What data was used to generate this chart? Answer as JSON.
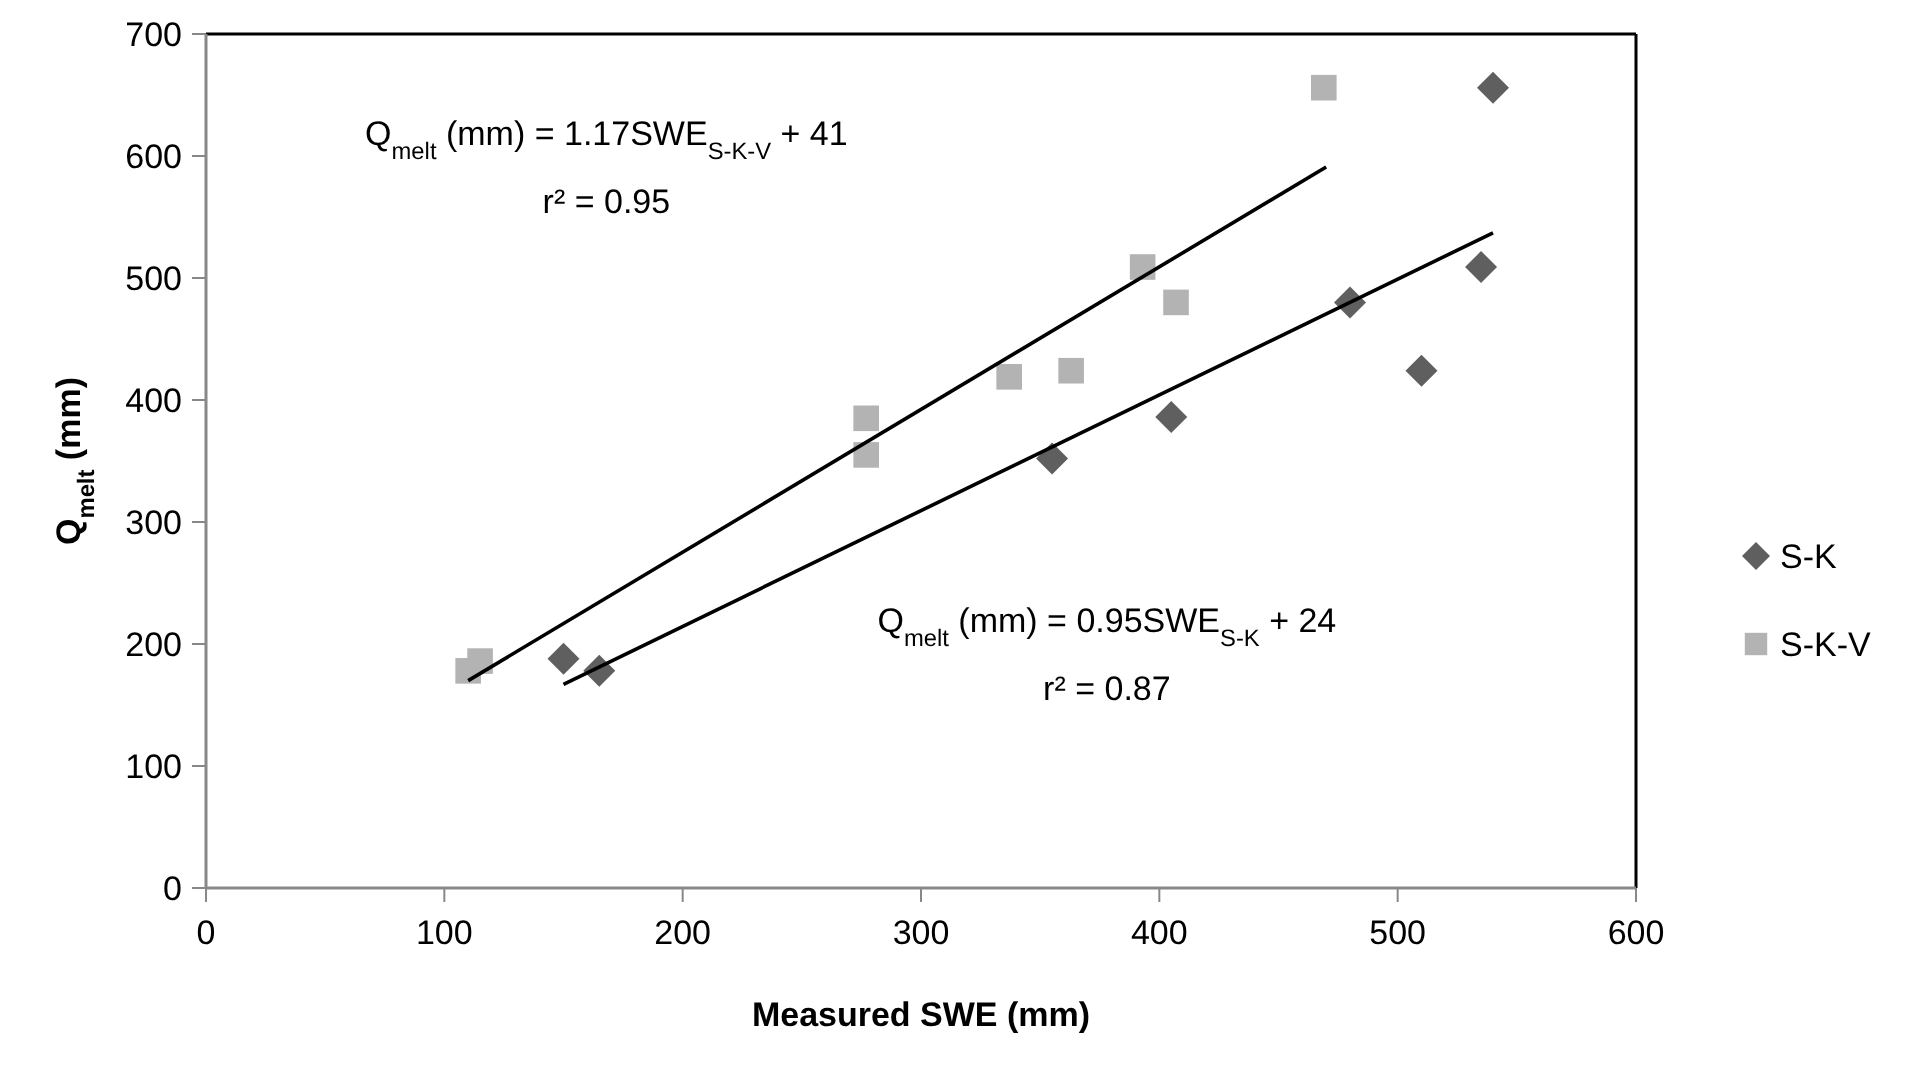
{
  "chart_data": {
    "type": "scatter",
    "xlabel": "Measured SWE (mm)",
    "ylabel": "Q$_{melt}$ (mm)",
    "xlim": [
      0,
      600
    ],
    "xticks": [
      0,
      100,
      200,
      300,
      400,
      500,
      600
    ],
    "ylim": [
      0,
      700
    ],
    "yticks": [
      0,
      100,
      200,
      300,
      400,
      500,
      600,
      700
    ],
    "grid": false,
    "legend": "right",
    "series": [
      {
        "name": "S-K",
        "color": "#5f5f5f",
        "marker": "diamond",
        "x": [
          150,
          165,
          355,
          405,
          480,
          510,
          535,
          540
        ],
        "values": [
          188,
          178,
          352,
          386,
          480,
          424,
          509,
          656
        ]
      },
      {
        "name": "S-K-V",
        "color": "#b3b3b3",
        "marker": "square",
        "x": [
          110,
          115,
          277,
          277,
          337,
          363,
          393,
          407,
          469
        ],
        "values": [
          178,
          186,
          355,
          385,
          419,
          424,
          509,
          480,
          656
        ]
      },
      {
        "type": "line",
        "color": "#000000",
        "x": [
          110,
          470
        ],
        "values": [
          170,
          591
        ]
      },
      {
        "type": "line",
        "color": "#000000",
        "x": [
          150,
          540
        ],
        "values": [
          167,
          537
        ]
      }
    ],
    "annotations": [
      "Q$_{melt}$ (mm) = 1.17SWE$_{S-K-V}$ + 41",
      "r² = 0.95",
      "Q$_{melt}$ (mm) = 0.95SWE$_{S-K}$ + 24",
      "r² = 0.87"
    ]
  }
}
